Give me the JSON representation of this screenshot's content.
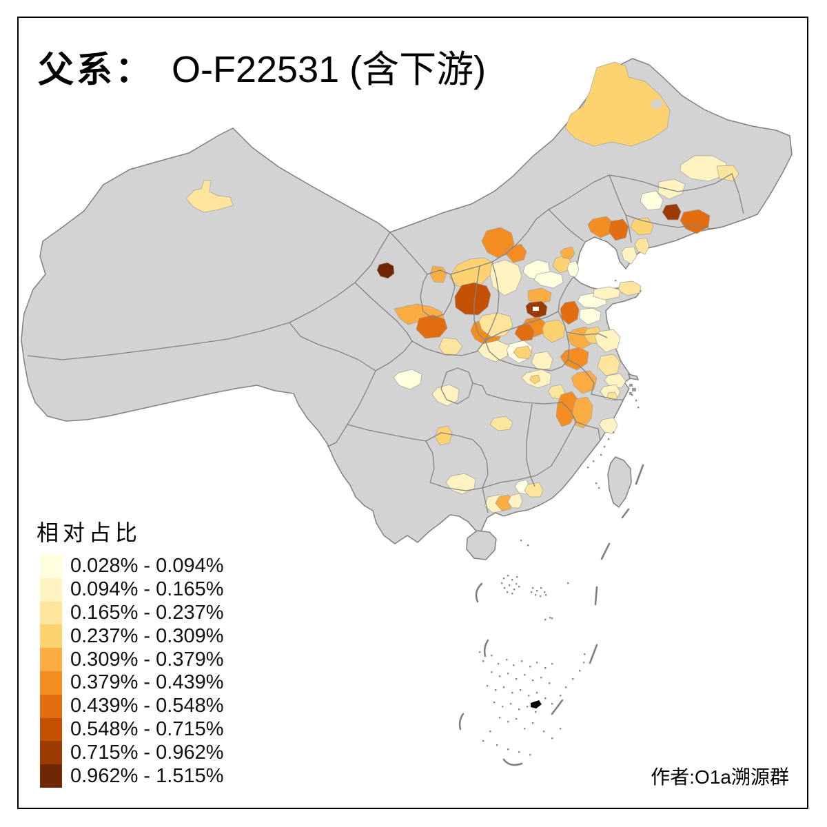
{
  "title": {
    "prefix": "父系：",
    "main": "O-F22531 (含下游)"
  },
  "legend": {
    "title": "相对占比",
    "classes": [
      {
        "label": "0.028% - 0.094%",
        "color": "#FFFFE0"
      },
      {
        "label": "0.094% - 0.165%",
        "color": "#FFF4C1"
      },
      {
        "label": "0.165% - 0.237%",
        "color": "#FDE69B"
      },
      {
        "label": "0.237% - 0.309%",
        "color": "#FDD271"
      },
      {
        "label": "0.309% - 0.379%",
        "color": "#FBAD44"
      },
      {
        "label": "0.379% - 0.439%",
        "color": "#F38D22"
      },
      {
        "label": "0.439% - 0.548%",
        "color": "#E26D11"
      },
      {
        "label": "0.548% - 0.715%",
        "color": "#C45004"
      },
      {
        "label": "0.715% - 0.962%",
        "color": "#9C3A04"
      },
      {
        "label": "0.962% - 1.515%",
        "color": "#702705"
      }
    ]
  },
  "author": "作者:O1a溯源群",
  "map": {
    "land_color": "#D3D3D3",
    "border_color": "#808080",
    "sea_color": "#FFFFFF",
    "regions": [
      {
        "c": 3,
        "p": "296,262 306,262 304,278 316,284 334,286 338,298 318,304 296,308 280,300 270,288 282,276 292,274"
      },
      {
        "c": 10,
        "p": "550,384 562,381 571,386 572,397 563,404 552,401 547,392"
      },
      {
        "c": 5,
        "p": "628,386 643,388 648,398 643,410 630,409 624,398"
      },
      {
        "c": 5,
        "p": "572,448 605,441 625,445 641,452 644,462 630,470 610,466 592,471 580,462"
      },
      {
        "c": 7,
        "p": "608,462 628,457 645,463 649,476 638,489 617,491 604,478"
      },
      {
        "c": 3,
        "p": "643,490 662,492 671,502 663,514 646,516 637,504"
      },
      {
        "c": 4,
        "p": "652,401 664,384 682,376 703,374 714,381 713,397 699,412 681,419 662,414"
      },
      {
        "c": 8,
        "p": "660,430 670,414 688,410 706,415 712,427 708,445 694,457 675,456 661,446"
      },
      {
        "c": 2,
        "p": "714,383 733,377 752,385 757,401 749,421 732,429 715,416 711,398"
      },
      {
        "c": 6,
        "p": "688,468 706,463 724,470 730,482 722,496 703,500 689,492 683,480"
      },
      {
        "c": 1,
        "p": "762,385 780,377 795,381 798,394 788,406 769,404 759,395"
      },
      {
        "c": 4,
        "p": "806,375 820,370 828,379 826,392 812,396 802,386"
      },
      {
        "c": 5,
        "p": "818,361 830,358 834,368 828,376 817,374 813,366"
      },
      {
        "c": 1,
        "p": "779,398 800,394 815,399 817,410 803,418 785,414 775,406"
      },
      {
        "c": 1,
        "p": "826,381 836,379 840,391 835,402 827,400 823,390"
      },
      {
        "c": 5,
        "p": "766,422 786,418 800,425 798,437 781,441 767,436"
      },
      {
        "c": 9,
        "p": "768,439 786,437 794,445 792,457 778,462 765,454 763,444"
      },
      {
        "c": 6,
        "p": "764,463 782,460 792,469 790,483 775,489 762,480 759,470"
      },
      {
        "c": 4,
        "p": "792,467 810,464 820,473 818,489 801,497 789,488 787,476"
      },
      {
        "c": 7,
        "p": "820,439 834,437 840,449 838,463 825,471 815,462 813,448"
      },
      {
        "c": 1,
        "p": "842,429 862,425 878,429 880,441 865,447 847,445 838,437"
      },
      {
        "c": 1,
        "p": "842,449 860,447 872,453 870,465 853,471 841,462"
      },
      {
        "c": 3,
        "p": "900,410 918,408 930,415 928,425 911,429 897,422"
      },
      {
        "c": 2,
        "p": "862,420 884,416 900,421 898,431 877,435 861,430"
      },
      {
        "c": 3,
        "p": "700,458 722,454 740,459 744,473 733,487 713,489 699,478 695,466"
      },
      {
        "c": 2,
        "p": "700,499 722,494 738,501 736,517 719,525 701,518 693,508"
      },
      {
        "c": 1,
        "p": "740,499 760,494 772,503 770,519 753,527 739,518 735,508"
      },
      {
        "c": 7,
        "p": "752,473 768,470 776,481 772,493 757,495 747,484"
      },
      {
        "c": 4,
        "p": "750,505 766,502 772,513 766,521 752,519 745,511"
      },
      {
        "c": 2,
        "p": "776,513 794,510 802,521 798,535 781,537 771,526"
      },
      {
        "c": 5,
        "p": "830,479 850,474 860,483 858,499 843,507 829,500 823,488"
      },
      {
        "c": 4,
        "p": "852,477 868,474 874,487 868,499 854,497 847,486"
      },
      {
        "c": 2,
        "p": "870,481 890,478 900,489 896,505 879,511 867,500 863,488"
      },
      {
        "c": 6,
        "p": "820,509 840,504 854,511 852,527 837,537 821,530 813,518"
      },
      {
        "c": 5,
        "p": "838,541 856,538 866,549 862,565 845,571 833,560 829,548"
      },
      {
        "c": 3,
        "p": "872,517 890,514 900,525 896,541 879,545 867,532"
      },
      {
        "c": 2,
        "p": "882,545 900,542 908,553 902,563 885,561 877,552"
      },
      {
        "c": 2,
        "p": "876,561 894,558 900,569 894,581 879,579 871,568"
      },
      {
        "c": 3,
        "p": "883,570 892,569 896,577 888,581 881,576"
      },
      {
        "c": 2,
        "p": "764,541 786,536 800,543 798,557 781,563 765,557 757,548"
      },
      {
        "c": 4,
        "p": "771,546 781,544 784,552 776,557 769,551"
      },
      {
        "c": 3,
        "p": "800,561 814,558 820,569 814,579 801,577 795,568"
      },
      {
        "c": 6,
        "p": "814,573 830,568 838,579 836,599 827,615 815,619 807,604 809,586"
      },
      {
        "c": 5,
        "p": "836,579 852,576 860,589 858,607 847,621 835,617 831,600 833,588"
      },
      {
        "c": 2,
        "p": "874,609 890,606 896,617 890,629 877,627 869,616"
      },
      {
        "c": 1,
        "p": "578,541 598,536 612,543 610,557 595,565 579,559 571,548"
      },
      {
        "c": 2,
        "p": "634,563 652,558 666,565 664,581 649,589 635,583 627,572"
      },
      {
        "c": 4,
        "p": "636,621 650,618 656,629 652,643 639,646 631,634"
      },
      {
        "c": 3,
        "p": "716,607 734,604 744,613 740,623 723,625 711,616"
      },
      {
        "c": 2,
        "p": "654,691 674,687 690,695 688,709 671,717 655,711 647,700"
      },
      {
        "c": 2,
        "p": "708,721 726,718 736,727 732,741 715,744 703,734"
      },
      {
        "c": 5,
        "p": "724,721 738,718 744,729 740,739 728,741 719,730"
      },
      {
        "c": 2,
        "p": "742,719 754,716 758,727 754,737 743,737 737,728"
      },
      {
        "c": 1,
        "p": "752,699 764,696 768,707 764,717 753,715 747,706"
      },
      {
        "c": 3,
        "p": "766,703 782,700 788,711 784,721 769,721 761,712"
      },
      {
        "c": 4,
        "p": "866,98 892,90 908,96 912,112 936,118 958,138 972,160 968,186 944,202 916,212 888,206 862,212 836,202 820,186 828,166 846,154 856,132"
      },
      {
        "c": 2,
        "p": "988,239 1008,226 1034,226 1054,237 1050,255 1028,263 1002,259 987,248"
      },
      {
        "c": 3,
        "p": "1040,241 1064,240 1072,252 1064,263 1044,259"
      },
      {
        "c": 2,
        "p": "956,264 978,260 994,267 990,281 971,289 955,280"
      },
      {
        "c": 1,
        "p": "932,281 952,277 962,290 958,303 940,305 929,292"
      },
      {
        "c": 9,
        "p": "966,298 982,296 988,307 984,319 969,319 961,308"
      },
      {
        "c": 7,
        "p": "992,308 1014,304 1030,313 1028,329 1011,339 995,332 987,320"
      },
      {
        "c": 6,
        "p": "860,318 880,314 890,323 886,339 871,345 857,336 853,326"
      },
      {
        "c": 7,
        "p": "886,321 904,318 912,329 908,345 893,349 883,336"
      },
      {
        "c": 4,
        "p": "920,318 940,316 948,327 944,339 927,341 915,330"
      },
      {
        "c": 3,
        "p": "926,347 938,345 942,357 936,369 925,364 921,354"
      },
      {
        "c": 2,
        "p": "906,360 920,358 924,371 916,383 905,377 902,366"
      },
      {
        "c": 6,
        "p": "706,335 726,330 742,338 746,354 738,368 722,374 707,366 699,350"
      },
      {
        "c": 6,
        "p": "738,359 756,354 764,365 760,377 745,381 735,370"
      }
    ]
  }
}
